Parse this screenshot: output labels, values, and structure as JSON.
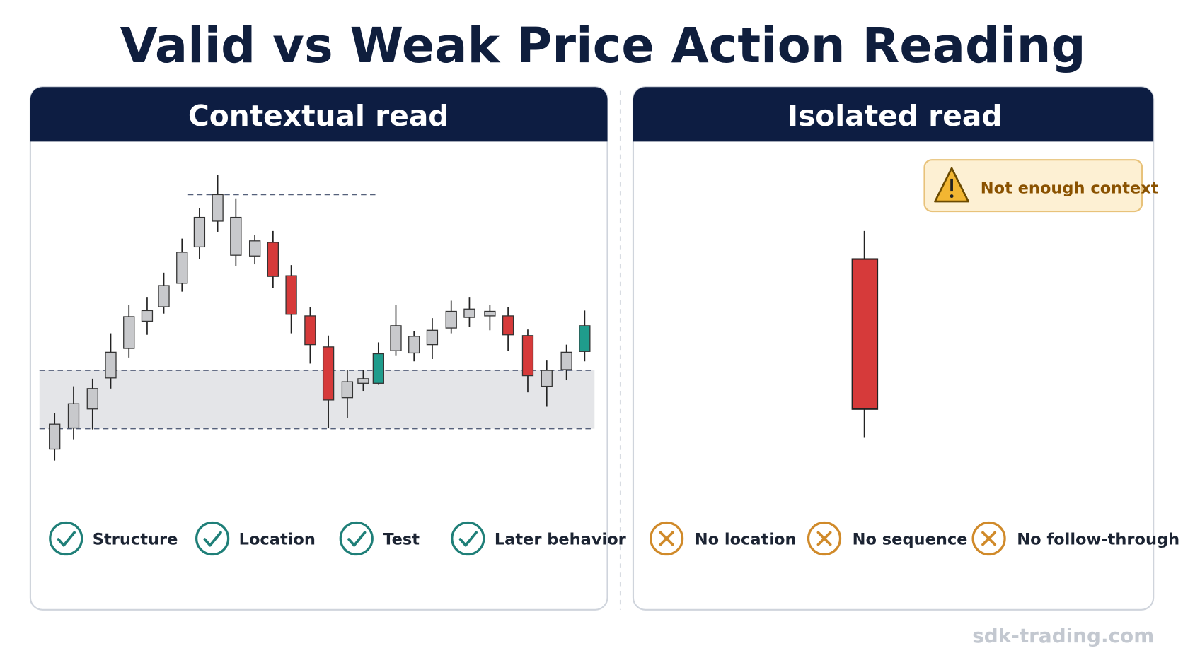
{
  "title": "Valid vs Weak Price Action Reading",
  "panels": [
    {
      "header": "Contextual read",
      "checks": [
        "Structure",
        "Location",
        "Test",
        "Later behavior"
      ]
    },
    {
      "header": "Isolated read",
      "badge": "Not enough context",
      "checks": [
        "No location",
        "No sequence",
        "No follow-through"
      ]
    }
  ],
  "footer": "sdk-trading.com"
}
